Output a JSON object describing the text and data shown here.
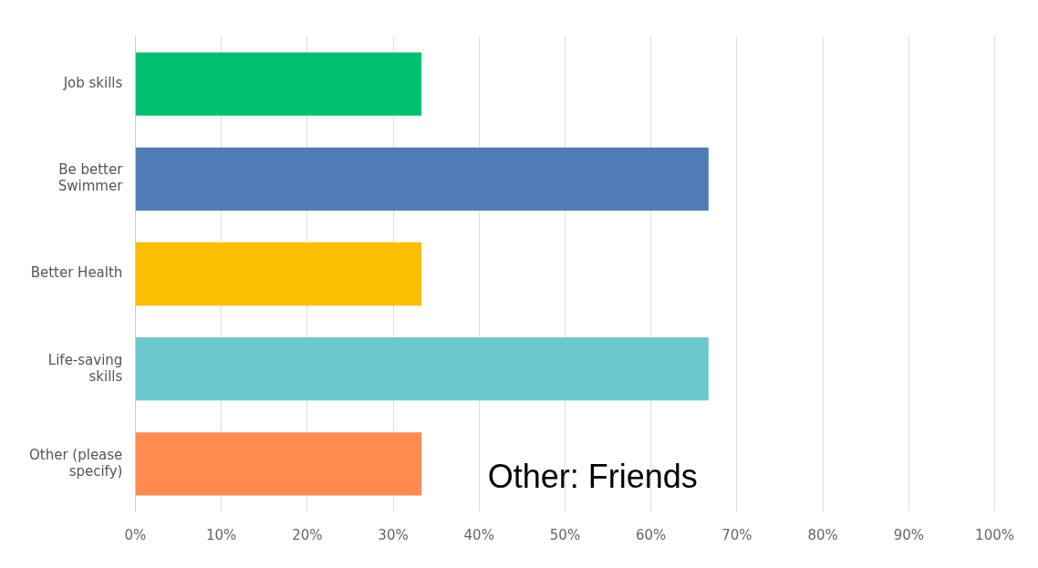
{
  "chart_data": {
    "type": "bar",
    "orientation": "horizontal",
    "categories": [
      "Job skills",
      "Be better\nSwimmer",
      "Better Health",
      "Life-saving\nskills",
      "Other (please\nspecify)"
    ],
    "values": [
      33.3,
      66.7,
      33.3,
      66.7,
      33.3
    ],
    "colors": [
      "#00bf6f",
      "#507cb6",
      "#f9be00",
      "#6bc8cd",
      "#ff8b4f"
    ],
    "xlim": [
      0,
      100
    ],
    "xticks": [
      {
        "value": 0,
        "label": "0%"
      },
      {
        "value": 10,
        "label": "10%"
      },
      {
        "value": 20,
        "label": "20%"
      },
      {
        "value": 30,
        "label": "30%"
      },
      {
        "value": 40,
        "label": "40%"
      },
      {
        "value": 50,
        "label": "50%"
      },
      {
        "value": 60,
        "label": "60%"
      },
      {
        "value": 70,
        "label": "70%"
      },
      {
        "value": 80,
        "label": "80%"
      },
      {
        "value": 90,
        "label": "90%"
      },
      {
        "value": 100,
        "label": "100%"
      }
    ],
    "grid": "x",
    "legend": false,
    "annotations": [
      "Other: Friends"
    ]
  }
}
